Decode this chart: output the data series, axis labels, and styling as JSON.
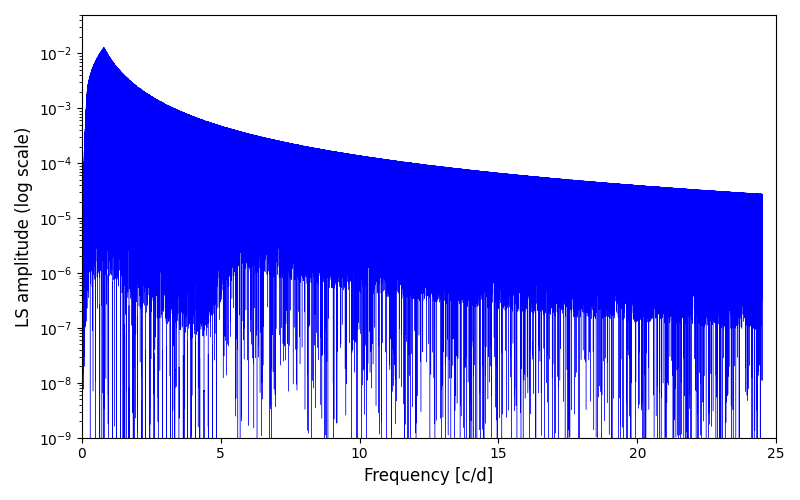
{
  "xlabel": "Frequency [c/d]",
  "ylabel": "LS amplitude (log scale)",
  "xlim": [
    0,
    25
  ],
  "ylim": [
    1e-09,
    0.05
  ],
  "line_color": "#0000ff",
  "linewidth": 0.3,
  "freq_max": 24.5,
  "n_points": 50000,
  "seed": 12345,
  "peak_freq": 0.8,
  "peak_amplitude": 0.013,
  "background_color": "#ffffff",
  "figsize": [
    8.0,
    5.0
  ],
  "dpi": 100
}
